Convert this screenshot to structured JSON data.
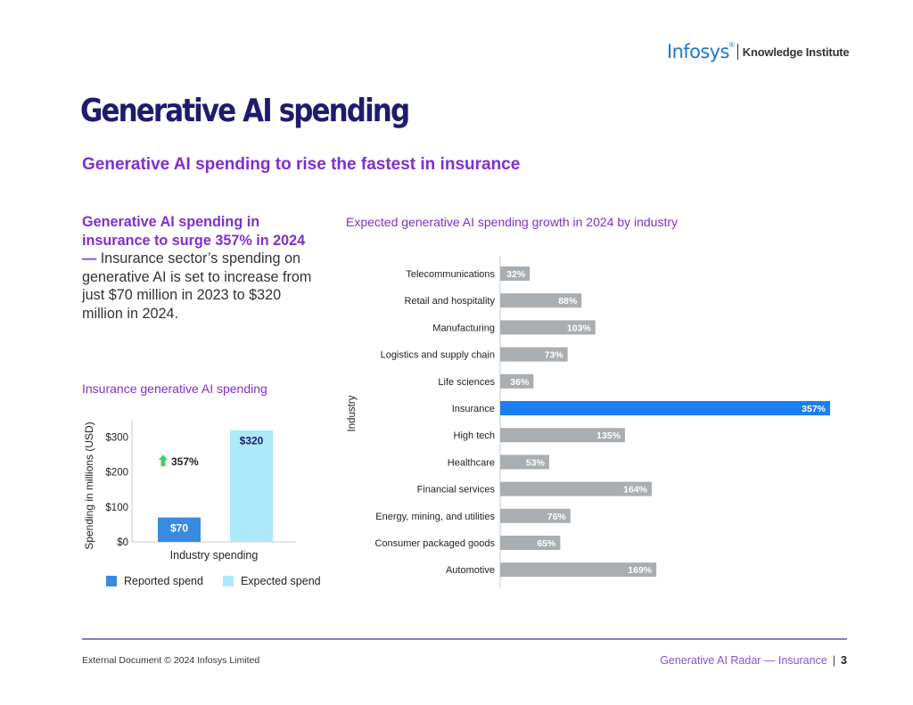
{
  "header": {
    "logo_brand": "Infosys",
    "logo_registered": "®",
    "logo_subtitle": "Knowledge Institute"
  },
  "page_title": "Generative AI spending",
  "subtitle": "Generative AI spending to rise the fastest in insurance",
  "callout": {
    "highlight": "Generative AI spending in insurance to surge 357% in 2024",
    "dash": " — ",
    "body": "Insurance sector’s spending on generative AI is set to increase from just $70 million in 2023 to $320 million in 2024."
  },
  "left_chart_title": "Insurance generative AI spending",
  "right_chart_title": "Expected generative AI spending growth in 2024 by industry",
  "legend": {
    "reported": "Reported spend",
    "expected": "Expected spend"
  },
  "colors": {
    "reported": "#3a8be0",
    "expected": "#aee8fb",
    "insurance": "#1a7ff0",
    "grey_bar": "#a8aeb1",
    "growth_arrow": "#3fcf6a"
  },
  "chart_data": [
    {
      "type": "bar",
      "title": "Insurance generative AI spending",
      "categories": [
        "Industry spending"
      ],
      "series": [
        {
          "name": "Reported spend",
          "values": [
            70
          ],
          "label": "$70"
        },
        {
          "name": "Expected spend",
          "values": [
            320
          ],
          "label": "$320"
        }
      ],
      "xlabel": "Industry spending",
      "ylabel": "Spending in millions (USD)",
      "ylim": [
        0,
        350
      ],
      "yticks": [
        0,
        100,
        200,
        300
      ],
      "ytick_labels": [
        "$0",
        "$100",
        "$200",
        "$300"
      ],
      "annotation": "357%"
    },
    {
      "type": "bar",
      "orientation": "horizontal",
      "title": "Expected generative AI spending growth in 2024 by industry",
      "ylabel": "Industry",
      "categories": [
        "Telecommunications",
        "Retail and hospitality",
        "Manufacturing",
        "Logistics and supply chain",
        "Life sciences",
        "Insurance",
        "High tech",
        "Healthcare",
        "Financial services",
        "Energy, mining, and utilities",
        "Consumer packaged goods",
        "Automotive"
      ],
      "values": [
        32,
        88,
        103,
        73,
        36,
        357,
        135,
        53,
        164,
        76,
        65,
        169
      ],
      "labels": [
        "32%",
        "88%",
        "103%",
        "73%",
        "36%",
        "357%",
        "135%",
        "53%",
        "164%",
        "76%",
        "65%",
        "169%"
      ],
      "highlight": "Insurance",
      "xlim": [
        0,
        357
      ]
    }
  ],
  "footer": {
    "left": "External Document © 2024 Infosys Limited",
    "right": "Generative AI Radar — Insurance",
    "separator": "|",
    "page_number": "3"
  }
}
